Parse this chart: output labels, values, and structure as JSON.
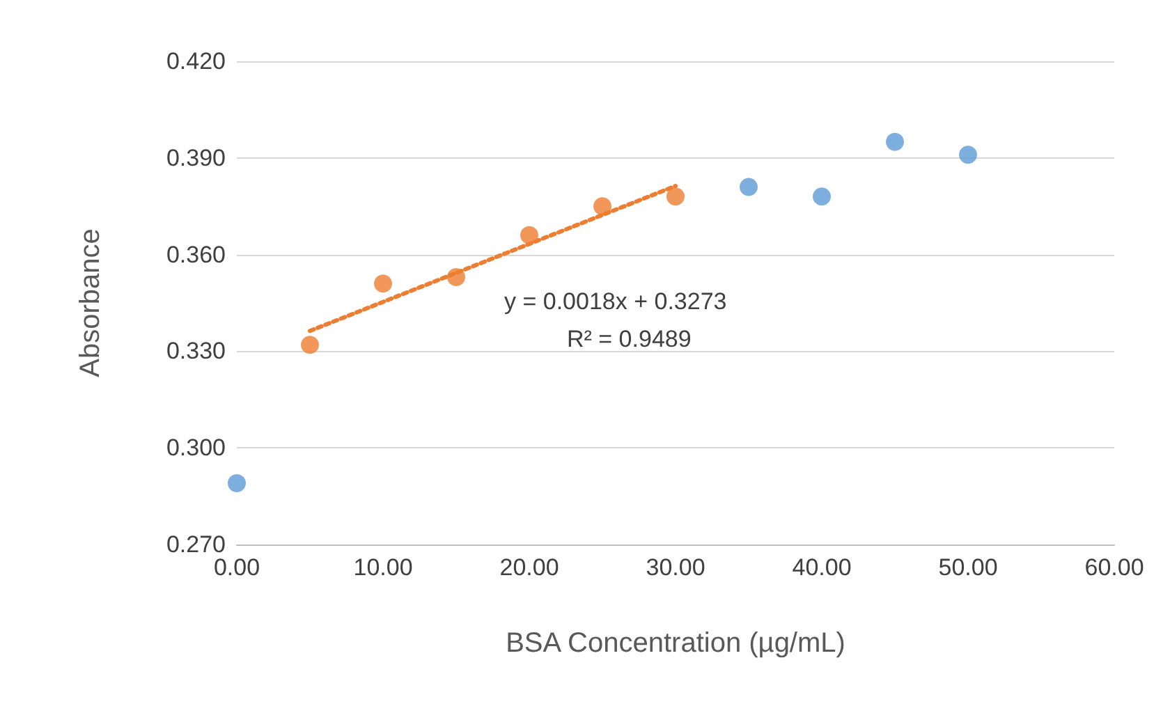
{
  "chart_data": {
    "type": "scatter",
    "xlabel": "BSA Concentration (µg/mL)",
    "ylabel": "Absorbance",
    "xlim": [
      0,
      60
    ],
    "xticks": [
      {
        "value": 0,
        "label": "0.00"
      },
      {
        "value": 10,
        "label": "10.00"
      },
      {
        "value": 20,
        "label": "20.00"
      },
      {
        "value": 30,
        "label": "30.00"
      },
      {
        "value": 40,
        "label": "40.00"
      },
      {
        "value": 50,
        "label": "50.00"
      },
      {
        "value": 60,
        "label": "60.00"
      }
    ],
    "ylim": [
      0.27,
      0.42
    ],
    "yticks": [
      {
        "value": 0.27,
        "label": "0.270"
      },
      {
        "value": 0.3,
        "label": "0.300"
      },
      {
        "value": 0.33,
        "label": "0.330"
      },
      {
        "value": 0.36,
        "label": "0.360"
      },
      {
        "value": 0.39,
        "label": "0.390"
      },
      {
        "value": 0.42,
        "label": "0.420"
      }
    ],
    "grid": "y",
    "marker": "circle",
    "series": [
      {
        "color": "#5b9bd5",
        "x": [
          0,
          35,
          40,
          45,
          50
        ],
        "values": [
          0.289,
          0.381,
          0.378,
          0.395,
          0.391
        ]
      },
      {
        "color": "#ed7d31",
        "x": [
          5,
          10,
          15,
          20,
          25,
          30
        ],
        "values": [
          0.332,
          0.351,
          0.353,
          0.366,
          0.375,
          0.378
        ]
      },
      {
        "type": "line",
        "color": "#ed7d31",
        "line_style": "dotted",
        "marker": "none",
        "x": [
          5,
          30
        ],
        "values": [
          0.3363,
          0.3813
        ]
      }
    ],
    "annotations": [
      "y = 0.0018x + 0.3273",
      "R² = 0.9489"
    ]
  }
}
